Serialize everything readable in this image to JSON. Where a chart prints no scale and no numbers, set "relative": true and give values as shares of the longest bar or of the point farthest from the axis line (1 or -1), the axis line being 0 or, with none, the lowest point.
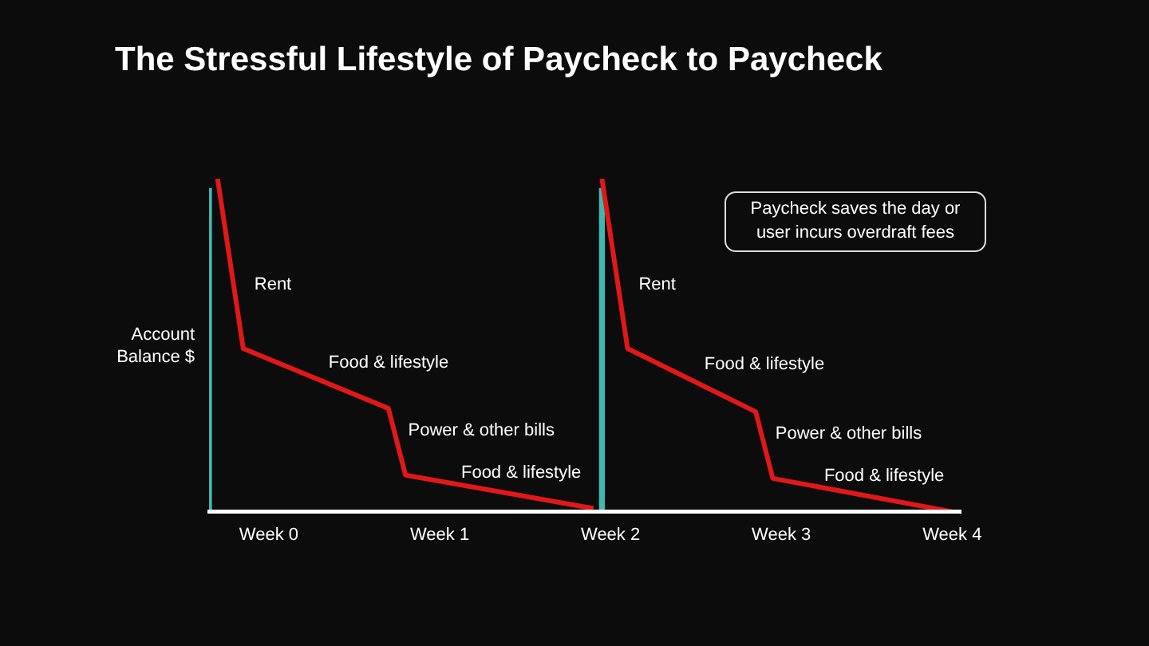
{
  "chart_data": {
    "type": "line",
    "title": "The Stressful Lifestyle of Paycheck to Paycheck",
    "ylabel": "Account Balance $",
    "relative": true,
    "marker": "none",
    "grid": false,
    "legend": false,
    "categories": [
      null,
      null,
      null,
      null,
      null,
      null,
      null,
      "Week 0",
      null,
      null,
      null,
      null,
      null,
      null,
      null,
      null,
      null,
      null,
      null,
      null,
      null,
      null,
      null,
      null,
      null,
      null,
      null,
      "Week 1",
      null,
      null,
      null,
      null,
      null,
      null,
      null,
      null,
      null,
      null,
      null,
      null,
      null,
      null,
      null,
      null,
      null,
      null,
      null,
      "Week 2",
      null,
      null,
      null,
      null,
      null,
      null,
      null,
      null,
      null,
      null,
      null,
      null,
      null,
      null,
      null,
      null,
      null,
      null,
      null,
      "Week 3",
      null,
      null,
      null,
      null,
      null,
      null,
      null,
      null,
      null,
      null,
      null,
      null,
      null,
      null,
      null,
      null,
      null,
      null,
      null,
      "Week 4",
      null
    ],
    "series": [
      {
        "color": "#e01818",
        "values": [
          null,
          1,
          null,
          null,
          0.49,
          null,
          null,
          null,
          null,
          null,
          null,
          null,
          null,
          null,
          null,
          null,
          null,
          null,
          null,
          null,
          null,
          0.31,
          null,
          0.11,
          null,
          null,
          null,
          null,
          null,
          null,
          null,
          null,
          null,
          null,
          null,
          null,
          null,
          null,
          null,
          null,
          null,
          null,
          null,
          null,
          null,
          0.01,
          null,
          null,
          null,
          null,
          null,
          null,
          null,
          null,
          null,
          null,
          null,
          null,
          null,
          null,
          null,
          null,
          null,
          null,
          null,
          null,
          null,
          null,
          null,
          null,
          null,
          null,
          null,
          null,
          null,
          null,
          null,
          null,
          null,
          null,
          null,
          null,
          null,
          null,
          null,
          null,
          null,
          null,
          null
        ]
      },
      {
        "color": "#e01818",
        "values": [
          null,
          null,
          null,
          null,
          null,
          null,
          null,
          null,
          null,
          null,
          null,
          null,
          null,
          null,
          null,
          null,
          null,
          null,
          null,
          null,
          null,
          null,
          null,
          null,
          null,
          null,
          null,
          null,
          null,
          null,
          null,
          null,
          null,
          null,
          null,
          null,
          null,
          null,
          null,
          null,
          null,
          null,
          null,
          null,
          null,
          null,
          1,
          null,
          null,
          0.49,
          null,
          null,
          null,
          null,
          null,
          null,
          null,
          null,
          null,
          null,
          null,
          null,
          null,
          null,
          0.3,
          null,
          0.1,
          null,
          null,
          null,
          null,
          null,
          null,
          null,
          null,
          null,
          null,
          null,
          null,
          null,
          null,
          null,
          null,
          null,
          null,
          null,
          null,
          0,
          null
        ]
      },
      {
        "type": "bar",
        "color": "#3fb8b0",
        "values": [
          0.97,
          null,
          null,
          null,
          null,
          null,
          null,
          null,
          null,
          null,
          null,
          null,
          null,
          null,
          null,
          null,
          null,
          null,
          null,
          null,
          null,
          null,
          null,
          null,
          null,
          null,
          null,
          null,
          null,
          null,
          null,
          null,
          null,
          null,
          null,
          null,
          null,
          null,
          null,
          null,
          null,
          null,
          null,
          null,
          null,
          null,
          0.97,
          null,
          null,
          null,
          null,
          null,
          null,
          null,
          null,
          null,
          null,
          null,
          null,
          null,
          null,
          null,
          null,
          null,
          null,
          null,
          null,
          null,
          null,
          null,
          null,
          null,
          null,
          null,
          null,
          null,
          null,
          null,
          null,
          null,
          null,
          null,
          null,
          null,
          null,
          null,
          null,
          null,
          null
        ]
      }
    ],
    "annotations": [
      "Rent",
      "Food & lifestyle",
      "Power & other bills",
      "Food & lifestyle",
      "Rent",
      "Food & lifestyle",
      "Power & other bills",
      "Food & lifestyle",
      "Paycheck saves the day or user incurs overdraft fees"
    ]
  }
}
